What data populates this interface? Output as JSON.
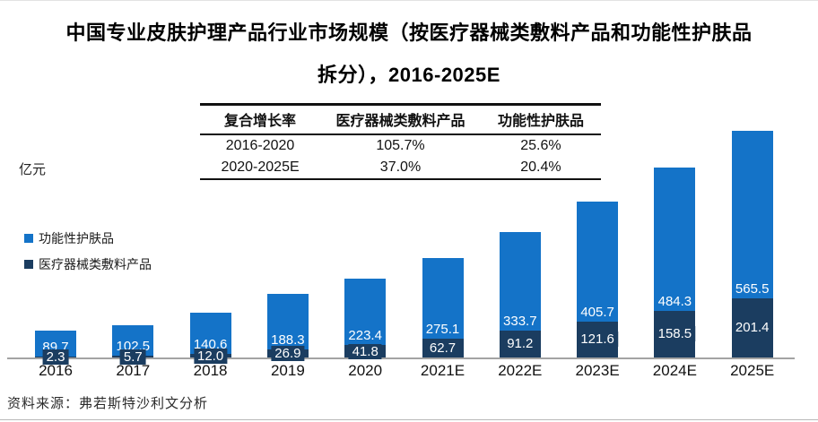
{
  "title": {
    "line1": "中国专业皮肤护理产品行业市场规模（按医疗器械类敷料产品和功能性护肤品",
    "line2": "拆分），2016-2025E"
  },
  "unit_label": "亿元",
  "cagr_table": {
    "headers": [
      "复合增长率",
      "医疗器械类敷料产品",
      "功能性护肤品"
    ],
    "rows": [
      [
        "2016-2020",
        "105.7%",
        "25.6%"
      ],
      [
        "2020-2025E",
        "37.0%",
        "20.4%"
      ]
    ]
  },
  "legend": {
    "items": [
      {
        "label": "功能性护肤品",
        "color": "#1473C8"
      },
      {
        "label": "医疗器械类敷料产品",
        "color": "#1B3D60"
      }
    ]
  },
  "chart_data": {
    "type": "bar",
    "stacked": true,
    "title": "中国专业皮肤护理产品行业市场规模（按医疗器械类敷料产品和功能性护肤品拆分），2016-2025E",
    "ylabel": "亿元",
    "xlabel": "",
    "grid": false,
    "legend_position": "left-middle",
    "categories": [
      "2016",
      "2017",
      "2018",
      "2019",
      "2020",
      "2021E",
      "2022E",
      "2023E",
      "2024E",
      "2025E"
    ],
    "series": [
      {
        "name": "医疗器械类敷料产品",
        "color": "#1B3D60",
        "values": [
          2.3,
          5.7,
          12.0,
          26.9,
          41.8,
          62.7,
          91.2,
          121.6,
          158.5,
          201.4
        ]
      },
      {
        "name": "功能性护肤品",
        "color": "#1473C8",
        "values": [
          89.7,
          102.5,
          140.6,
          188.3,
          223.4,
          275.1,
          333.7,
          405.7,
          484.3,
          565.5
        ]
      }
    ],
    "totals": [
      92.0,
      108.2,
      152.6,
      215.2,
      265.2,
      337.8,
      424.9,
      527.3,
      642.8,
      766.9
    ]
  },
  "source": "资料来源：弗若斯特沙利文分析",
  "colors": {
    "functional_skincare": "#1473C8",
    "medical_dressing": "#1B3D60",
    "axis_line": "#a3a3a3"
  }
}
